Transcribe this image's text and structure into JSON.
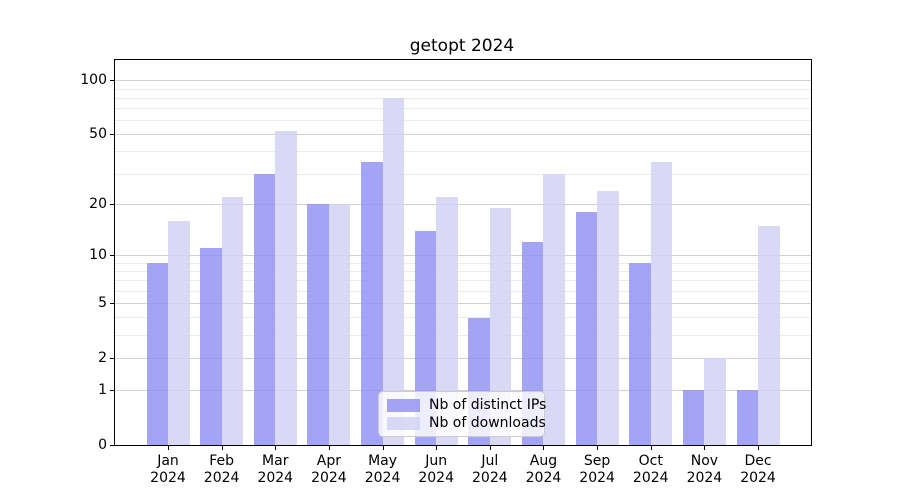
{
  "title": "getopt 2024",
  "chart_data": {
    "type": "bar",
    "title": "getopt 2024",
    "categories": [
      "Jan",
      "Feb",
      "Mar",
      "Apr",
      "May",
      "Jun",
      "Jul",
      "Aug",
      "Sep",
      "Oct",
      "Nov",
      "Dec"
    ],
    "year_label": "2024",
    "series": [
      {
        "name": "Nb of distinct IPs",
        "color": "rgba(148,148,242,0.85)",
        "values": [
          9,
          11,
          30,
          20,
          35,
          14,
          4,
          12,
          18,
          9,
          1,
          1
        ]
      },
      {
        "name": "Nb of downloads",
        "color": "rgba(210,210,244,0.85)",
        "values": [
          16,
          22,
          52,
          20,
          80,
          22,
          19,
          30,
          24,
          35,
          2,
          15
        ]
      }
    ],
    "xlabel": "",
    "ylabel": "",
    "yscale": "log10(value+1)",
    "ytick_values": [
      0,
      1,
      2,
      5,
      10,
      20,
      50,
      100
    ],
    "yminor_values": [
      3,
      4,
      6,
      7,
      8,
      9,
      30,
      40,
      60,
      70,
      80,
      90
    ],
    "ylim": [
      0,
      130
    ],
    "grid": true,
    "legend_position": "lower center",
    "colors": {
      "distinct_ips": "#a4a4f4",
      "downloads": "#d9d9f6",
      "grid_major": "#d0d0d0",
      "grid_minor": "#ebebeb",
      "axis": "#000000"
    }
  }
}
